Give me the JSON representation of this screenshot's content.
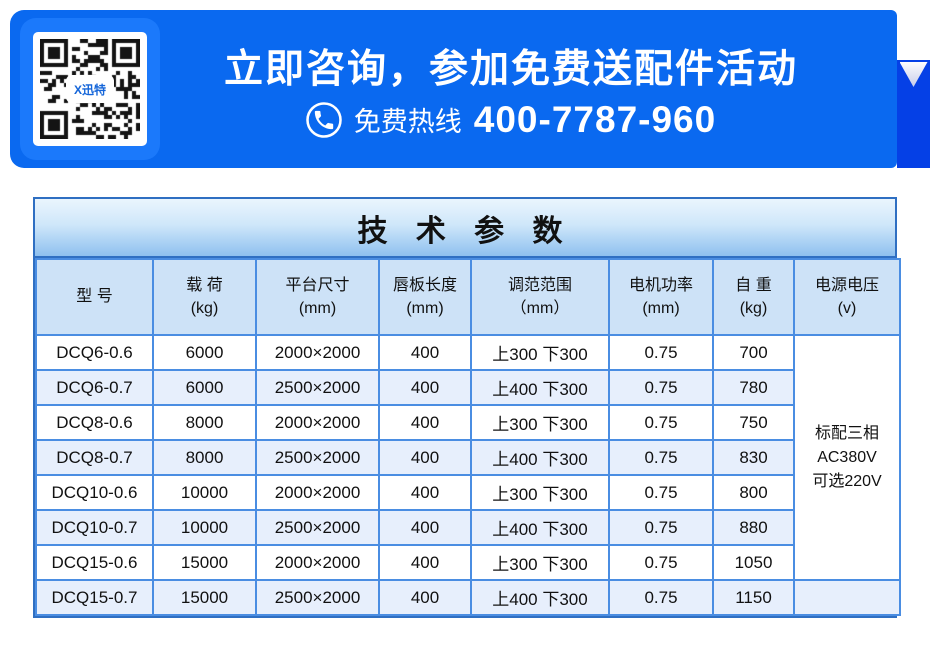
{
  "banner": {
    "headline": "立即咨询，参加免费送配件活动",
    "hotline_label": "免费热线",
    "hotline_number": "400-7787-960",
    "qr_logo": "X迅特"
  },
  "table": {
    "title": "技 术 参 数",
    "headers": [
      {
        "line1": "型 号",
        "line2": ""
      },
      {
        "line1": "载 荷",
        "line2": "(kg)"
      },
      {
        "line1": "平台尺寸",
        "line2": "(mm)"
      },
      {
        "line1": "唇板长度",
        "line2": "(mm)"
      },
      {
        "line1": "调范范围",
        "line2": "（mm）"
      },
      {
        "line1": "电机功率",
        "line2": "(mm)"
      },
      {
        "line1": "自 重",
        "line2": "(kg)"
      },
      {
        "line1": "电源电压",
        "line2": "(v)"
      }
    ],
    "rows": [
      {
        "cells": [
          "DCQ6-0.6",
          "6000",
          "2000×2000",
          "400",
          "上300 下300",
          "0.75",
          "700"
        ]
      },
      {
        "cells": [
          "DCQ6-0.7",
          "6000",
          "2500×2000",
          "400",
          "上400 下300",
          "0.75",
          "780"
        ]
      },
      {
        "cells": [
          "DCQ8-0.6",
          "8000",
          "2000×2000",
          "400",
          "上300 下300",
          "0.75",
          "750"
        ]
      },
      {
        "cells": [
          "DCQ8-0.7",
          "8000",
          "2500×2000",
          "400",
          "上400 下300",
          "0.75",
          "830"
        ]
      },
      {
        "cells": [
          "DCQ10-0.6",
          "10000",
          "2000×2000",
          "400",
          "上300 下300",
          "0.75",
          "800"
        ]
      },
      {
        "cells": [
          "DCQ10-0.7",
          "10000",
          "2500×2000",
          "400",
          "上400 下300",
          "0.75",
          "880"
        ]
      },
      {
        "cells": [
          "DCQ15-0.6",
          "15000",
          "2000×2000",
          "400",
          "上300 下300",
          "0.75",
          "1050"
        ]
      },
      {
        "cells": [
          "DCQ15-0.7",
          "15000",
          "2500×2000",
          "400",
          "上400 下300",
          "0.75",
          "1150"
        ]
      }
    ],
    "voltage_note": [
      "标配三相",
      "AC380V",
      "可选220V"
    ]
  },
  "colors": {
    "banner_blue": "#0a69f0",
    "qr_wrap_blue": "#1b79fb",
    "side_tab_blue": "#0540e6",
    "table_outer_border": "#2f6fc2",
    "cell_border": "#4a8de2",
    "header_bg": "#cde2f7",
    "row_alt_bg": "#e7effc",
    "title_gradient_top": "#eaf5fd",
    "title_gradient_bottom": "#8ec0ef"
  }
}
